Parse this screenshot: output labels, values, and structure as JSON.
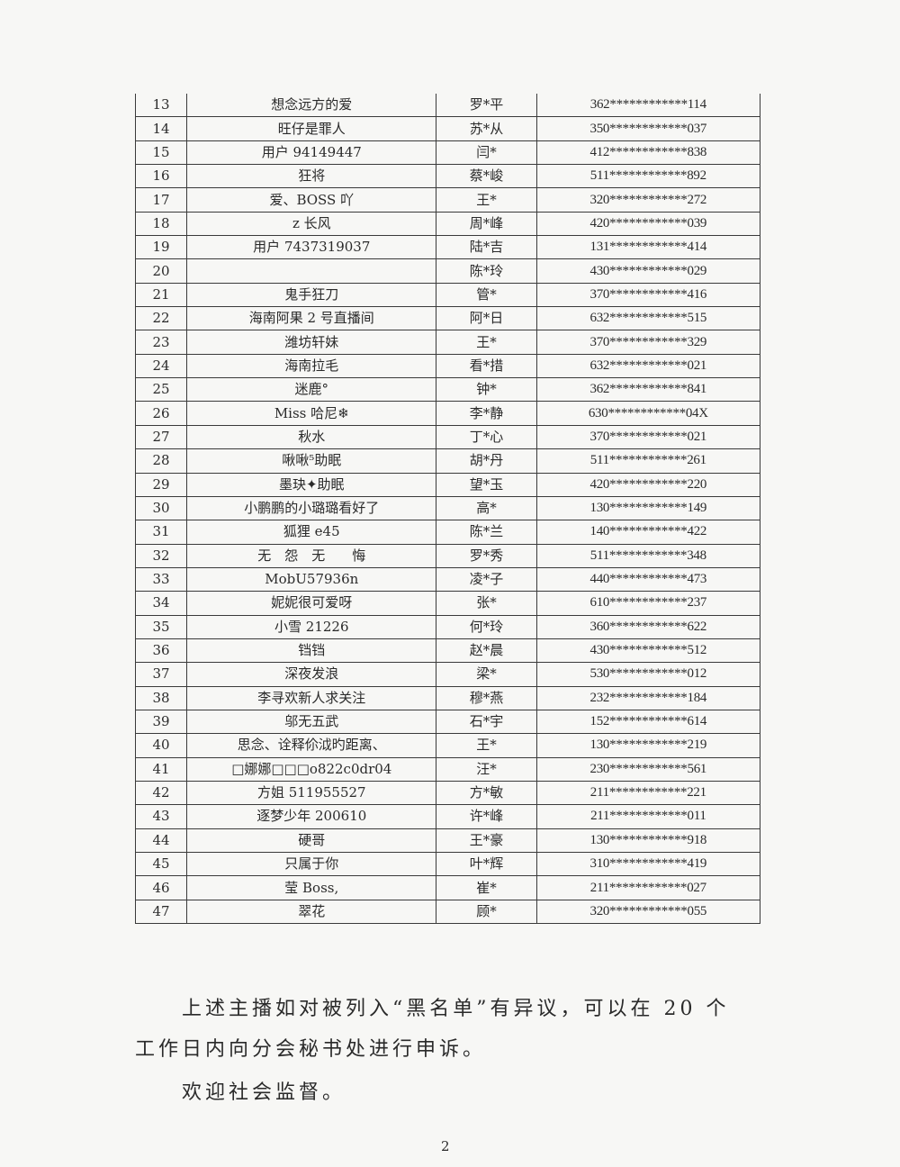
{
  "table": {
    "rows": [
      {
        "no": "13",
        "nickname": "想念远方的爱",
        "name": "罗*平",
        "id": "362************114"
      },
      {
        "no": "14",
        "nickname": "旺仔是罪人",
        "name": "苏*从",
        "id": "350************037"
      },
      {
        "no": "15",
        "nickname": "用户 94149447",
        "name": "闫*",
        "id": "412************838"
      },
      {
        "no": "16",
        "nickname": "狂将",
        "name": "蔡*峻",
        "id": "511************892"
      },
      {
        "no": "17",
        "nickname": "爱、BOSS 吖",
        "name": "王*",
        "id": "320************272"
      },
      {
        "no": "18",
        "nickname": "z 长风",
        "name": "周*峰",
        "id": "420************039"
      },
      {
        "no": "19",
        "nickname": "用户 7437319037",
        "name": "陆*吉",
        "id": "131************414"
      },
      {
        "no": "20",
        "nickname": "",
        "name": "陈*玲",
        "id": "430************029"
      },
      {
        "no": "21",
        "nickname": "鬼手狂刀",
        "name": "管*",
        "id": "370************416"
      },
      {
        "no": "22",
        "nickname": "海南阿果 2 号直播间",
        "name": "阿*日",
        "id": "632************515"
      },
      {
        "no": "23",
        "nickname": "潍坊轩妹",
        "name": "王*",
        "id": "370************329"
      },
      {
        "no": "24",
        "nickname": "海南拉毛",
        "name": "看*措",
        "id": "632************021"
      },
      {
        "no": "25",
        "nickname": "迷鹿°",
        "name": "钟*",
        "id": "362************841"
      },
      {
        "no": "26",
        "nickname": "Miss 哈尼❄",
        "name": "李*静",
        "id": "630************04X"
      },
      {
        "no": "27",
        "nickname": "秋水",
        "name": "丁*心",
        "id": "370************021"
      },
      {
        "no": "28",
        "nickname": "啾啾⁵助眠",
        "name": "胡*丹",
        "id": "511************261"
      },
      {
        "no": "29",
        "nickname": "墨玦✦助眠",
        "name": "望*玉",
        "id": "420************220"
      },
      {
        "no": "30",
        "nickname": "小鹏鹏的小璐璐看好了",
        "name": "高*",
        "id": "130************149"
      },
      {
        "no": "31",
        "nickname": "狐狸 e45",
        "name": "陈*兰",
        "id": "140************422"
      },
      {
        "no": "32",
        "nickname": "无　怨　无　　悔",
        "name": "罗*秀",
        "id": "511************348"
      },
      {
        "no": "33",
        "nickname": "MobU57936n",
        "name": "凌*子",
        "id": "440************473"
      },
      {
        "no": "34",
        "nickname": "妮妮很可爱呀",
        "name": "张*",
        "id": "610************237"
      },
      {
        "no": "35",
        "nickname": "小雪 21226",
        "name": "何*玲",
        "id": "360************622"
      },
      {
        "no": "36",
        "nickname": "铛铛",
        "name": "赵*晨",
        "id": "430************512"
      },
      {
        "no": "37",
        "nickname": "深夜发浪",
        "name": "梁*",
        "id": "530************012"
      },
      {
        "no": "38",
        "nickname": "李寻欢新人求关注",
        "name": "穆*燕",
        "id": "232************184"
      },
      {
        "no": "39",
        "nickname": "邬无五武",
        "name": "石*宇",
        "id": "152************614"
      },
      {
        "no": "40",
        "nickname": "思念、诠释伱泧旳距离、",
        "name": "王*",
        "id": "130************219"
      },
      {
        "no": "41",
        "nickname": "□娜娜□□□o822c0dr04",
        "name": "汪*",
        "id": "230************561"
      },
      {
        "no": "42",
        "nickname": "方姐 511955527",
        "name": "方*敏",
        "id": "211************221"
      },
      {
        "no": "43",
        "nickname": "逐梦少年 200610",
        "name": "许*峰",
        "id": "211************011"
      },
      {
        "no": "44",
        "nickname": "硬哥",
        "name": "王*豪",
        "id": "130************918"
      },
      {
        "no": "45",
        "nickname": "只属于你",
        "name": "叶*辉",
        "id": "310************419"
      },
      {
        "no": "46",
        "nickname": "莹 Boss,",
        "name": "崔*",
        "id": "211************027"
      },
      {
        "no": "47",
        "nickname": "翠花",
        "name": "顾*",
        "id": "320************055"
      }
    ]
  },
  "body": {
    "line1": "上述主播如对被列入“黑名单”有异议，可以在 20 个",
    "line2": "工作日内向分会秘书处进行申诉。",
    "line3": "欢迎社会监督。"
  },
  "page_number": "2"
}
